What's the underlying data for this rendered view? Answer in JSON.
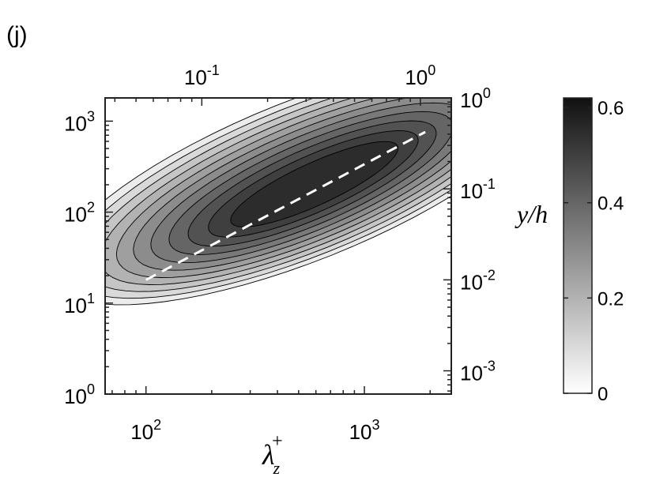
{
  "panel_label": "(j)",
  "chart_data": {
    "type": "heatmap",
    "subtype": "filled-contour",
    "title": "",
    "xlabel": "λ",
    "xlabel_sub": "z",
    "xlabel_sup": "+",
    "ylabel": "",
    "right_axis_label": "y/h",
    "x_scale": "log",
    "y_scale": "log",
    "xlim": [
      65,
      2500
    ],
    "ylim": [
      1,
      1800
    ],
    "x_ticks": [
      {
        "value": 100,
        "base": "10",
        "exp": "2"
      },
      {
        "value": 1000,
        "base": "10",
        "exp": "3"
      }
    ],
    "y_ticks": [
      {
        "value": 1,
        "base": "10",
        "exp": "0"
      },
      {
        "value": 10,
        "base": "10",
        "exp": "1"
      },
      {
        "value": 100,
        "base": "10",
        "exp": "2"
      },
      {
        "value": 1000,
        "base": "10",
        "exp": "3"
      }
    ],
    "top_axis": {
      "scale": "log",
      "lim": [
        0.0361,
        1.386
      ],
      "ticks": [
        {
          "value": 0.1,
          "base": "10",
          "exp": "-1"
        },
        {
          "value": 1,
          "base": "10",
          "exp": "0"
        }
      ]
    },
    "right_axis": {
      "scale": "log",
      "lim": [
        0.000555,
        1
      ],
      "ticks": [
        {
          "value": 1,
          "base": "10",
          "exp": "0"
        },
        {
          "value": 0.1,
          "base": "10",
          "exp": "-1"
        },
        {
          "value": 0.01,
          "base": "10",
          "exp": "-2"
        },
        {
          "value": 0.001,
          "base": "10",
          "exp": "-3"
        }
      ]
    },
    "contour_levels": [
      0.05,
      0.1,
      0.15,
      0.2,
      0.25,
      0.3,
      0.35,
      0.4,
      0.45,
      0.5,
      0.55
    ],
    "ridge_line": {
      "style": "dashed",
      "color": "#ffffff",
      "points": [
        [
          100,
          18
        ],
        [
          1900,
          760
        ]
      ]
    },
    "peak": {
      "x": 600,
      "y": 200,
      "value": 0.62
    },
    "colorbar": {
      "min": 0,
      "max": 0.62,
      "ticks": [
        {
          "value": 0,
          "label": "0"
        },
        {
          "value": 0.2,
          "label": "0.2"
        },
        {
          "value": 0.4,
          "label": "0.4"
        },
        {
          "value": 0.6,
          "label": "0.6"
        }
      ],
      "colormap": "gray-reversed"
    },
    "grid": false,
    "legend": "none"
  }
}
